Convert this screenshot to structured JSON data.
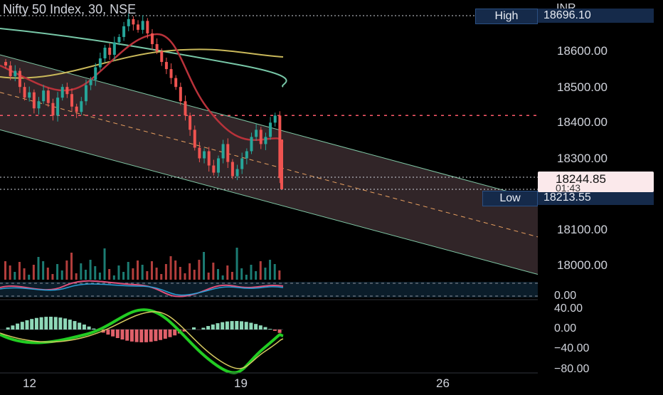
{
  "header": {
    "symbol_title": "Nifty 50 Index, 30, NSE",
    "currency": "INR"
  },
  "high_marker": {
    "label": "High",
    "value": "18696.10"
  },
  "low_marker": {
    "label": "Low",
    "value": "18213.55"
  },
  "last_price": {
    "value": "18244.85",
    "countdown": "01:43"
  },
  "price_axis": {
    "labels": [
      "18600.00",
      "18500.00",
      "18400.00",
      "18300.00",
      "18100.00",
      "18000.00"
    ]
  },
  "oscillator_axis": {
    "labels": [
      "0.00"
    ]
  },
  "macd_axis": {
    "labels": [
      "40.00",
      "0.00",
      "−40.00",
      "−80.00"
    ]
  },
  "time_axis": {
    "labels": [
      "12",
      "19",
      "26"
    ]
  },
  "colors": {
    "up": "#26a69a",
    "down": "#ef5350",
    "channel_fill": "#3a2b2f",
    "channel_border": "#7fc6a4",
    "red_ma": "#b8323a",
    "yellow_ma": "#c9b85a",
    "green_ma": "#78c8a8",
    "dashed_resistance": "#ff5a6a"
  },
  "chart_data": {
    "type": "candlestick",
    "price_range": [
      17950,
      18720
    ],
    "close_prices": [
      18560,
      18530,
      18545,
      18500,
      18470,
      18485,
      18440,
      18460,
      18490,
      18455,
      18420,
      18470,
      18500,
      18480,
      18445,
      18430,
      18460,
      18505,
      18520,
      18555,
      18580,
      18610,
      18590,
      18625,
      18640,
      18670,
      18690,
      18675,
      18660,
      18685,
      18650,
      18620,
      18600,
      18570,
      18550,
      18525,
      18500,
      18460,
      18420,
      18380,
      18330,
      18300,
      18320,
      18280,
      18260,
      18300,
      18340,
      18290,
      18250,
      18270,
      18300,
      18320,
      18360,
      18380,
      18340,
      18360,
      18400,
      18420,
      18244.85
    ],
    "bands": {
      "channel_start": [
        18590,
        18380
      ],
      "channel_end": [
        18150,
        17940
      ]
    },
    "resistance_level": 18420
  }
}
